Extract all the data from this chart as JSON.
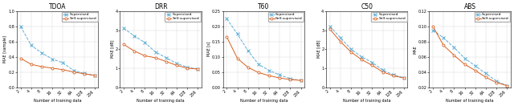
{
  "titles": [
    "TDOA",
    "DRR",
    "T60",
    "C50",
    "ABS"
  ],
  "xlabel": "Number of training data",
  "ylabels": [
    "MAE [sample]",
    "MAE [dB]",
    "MAE [s]",
    "MAE [dB]",
    "MAE"
  ],
  "x_ticks": [
    2,
    4,
    8,
    16,
    32,
    64,
    128,
    256
  ],
  "x_tick_labels": [
    "2",
    "4",
    "8",
    "16",
    "32",
    "64",
    "128",
    "256"
  ],
  "supervised_color": "#5badd4",
  "self_supervised_color": "#d95f1e",
  "plots": [
    {
      "title": "TDOA",
      "ylabel": "MAE [sample]",
      "ylim": [
        0,
        1.0
      ],
      "yticks": [
        0,
        0.2,
        0.4,
        0.6,
        0.8,
        1.0
      ],
      "supervised": [
        0.8,
        0.55,
        0.45,
        0.37,
        0.32,
        0.22,
        0.18,
        0.155
      ],
      "self_supervised": [
        0.38,
        0.3,
        0.27,
        0.25,
        0.23,
        0.2,
        0.175,
        0.155
      ]
    },
    {
      "title": "DRR",
      "ylabel": "MAE [dB]",
      "ylim": [
        0,
        4.0
      ],
      "yticks": [
        0,
        1,
        2,
        3,
        4
      ],
      "supervised": [
        3.1,
        2.7,
        2.35,
        1.85,
        1.55,
        1.25,
        1.05,
        0.95
      ],
      "self_supervised": [
        2.25,
        1.9,
        1.65,
        1.55,
        1.35,
        1.15,
        1.0,
        0.95
      ]
    },
    {
      "title": "T60",
      "ylabel": "MAE [s]",
      "ylim": [
        0,
        0.25
      ],
      "yticks": [
        0,
        0.05,
        0.1,
        0.15,
        0.2,
        0.25
      ],
      "supervised": [
        0.225,
        0.175,
        0.12,
        0.075,
        0.055,
        0.04,
        0.028,
        0.022
      ],
      "self_supervised": [
        0.165,
        0.095,
        0.065,
        0.048,
        0.038,
        0.03,
        0.025,
        0.022
      ]
    },
    {
      "title": "C50",
      "ylabel": "MAE [dB]",
      "ylim": [
        0,
        4.0
      ],
      "yticks": [
        0,
        1,
        2,
        3,
        4
      ],
      "supervised": [
        3.2,
        2.6,
        2.0,
        1.6,
        1.3,
        0.9,
        0.65,
        0.5
      ],
      "self_supervised": [
        3.05,
        2.4,
        1.85,
        1.45,
        1.15,
        0.8,
        0.6,
        0.48
      ]
    },
    {
      "title": "ABS",
      "ylabel": "MAE",
      "ylim": [
        0.02,
        0.12
      ],
      "yticks": [
        0.02,
        0.04,
        0.06,
        0.08,
        0.1,
        0.12
      ],
      "supervised": [
        0.095,
        0.085,
        0.072,
        0.058,
        0.048,
        0.038,
        0.028,
        0.022
      ],
      "self_supervised": [
        0.1,
        0.075,
        0.062,
        0.05,
        0.042,
        0.033,
        0.026,
        0.022
      ]
    }
  ]
}
